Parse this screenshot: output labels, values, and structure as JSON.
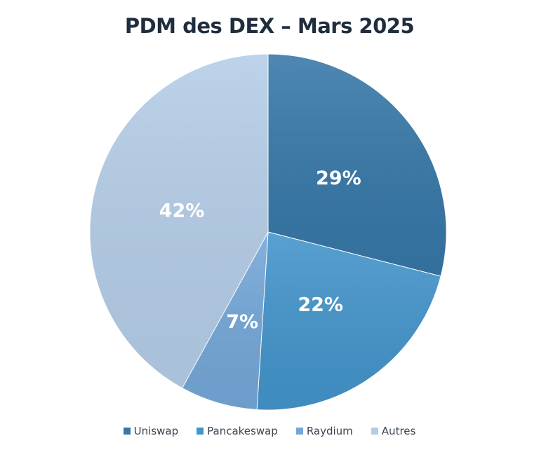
{
  "chart_data": {
    "type": "pie",
    "title": "PDM des DEX – Mars 2025",
    "categories": [
      "Uniswap",
      "Pancakeswap",
      "Raydium",
      "Autres"
    ],
    "values": [
      29,
      22,
      7,
      42
    ],
    "labels": [
      "29%",
      "22%",
      "7%",
      "42%"
    ],
    "colors": [
      "#3677a8",
      "#4394cb",
      "#74a7d8",
      "#b4cde7"
    ],
    "start_angle": "12 o'clock",
    "direction": "clockwise",
    "legend_position": "bottom"
  }
}
